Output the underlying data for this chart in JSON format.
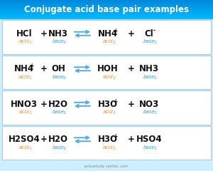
{
  "title": "Conjugate acid base pair examples",
  "title_color": "#ffffff",
  "bg_color": "#cceeff",
  "box_bg": "#ffffff",
  "box_border": "#aaccdd",
  "acid_color": "#ff8822",
  "base_color": "#3399ee",
  "formula_color": "#111111",
  "arrow_color": "#55aadd",
  "watermark": "priyastudy centre .com",
  "rows": [
    {
      "left1": "HCl",
      "sup1": "",
      "label1": "acid",
      "sub1": "1",
      "left2": "NH3",
      "sup2": "",
      "label2": "base",
      "sub2": "2",
      "right1": "NH4",
      "sup3": "+",
      "label3": "acid",
      "sub3": "2",
      "right2": "Cl",
      "sup4": "-",
      "label4": "base",
      "sub4": "1"
    },
    {
      "left1": "NH4",
      "sup1": "+",
      "label1": "acid",
      "sub1": "1",
      "left2": "OH",
      "sup2": "-",
      "label2": "base",
      "sub2": "2",
      "right1": "HOH",
      "sup3": "",
      "label3": "acid",
      "sub3": "2",
      "right2": "NH3",
      "sup4": "",
      "label4": "base",
      "sub4": "1"
    },
    {
      "left1": "HNO3",
      "sup1": "",
      "label1": "acid",
      "sub1": "1",
      "left2": "H2O",
      "sup2": "",
      "label2": "base",
      "sub2": "2",
      "right1": "H3O",
      "sup3": "+",
      "label3": "acid",
      "sub3": "2",
      "right2": "NO3",
      "sup4": "-",
      "label4": "base",
      "sub4": "1"
    },
    {
      "left1": "H2SO4",
      "sup1": "",
      "label1": "acid",
      "sub1": "1",
      "left2": "H2O",
      "sup2": "",
      "label2": "base",
      "sub2": "2",
      "right1": "H3O",
      "sup3": "+",
      "label3": "acid",
      "sub3": "2",
      "right2": "HSO4",
      "sup4": "-",
      "label4": "base",
      "sub4": "1"
    }
  ]
}
